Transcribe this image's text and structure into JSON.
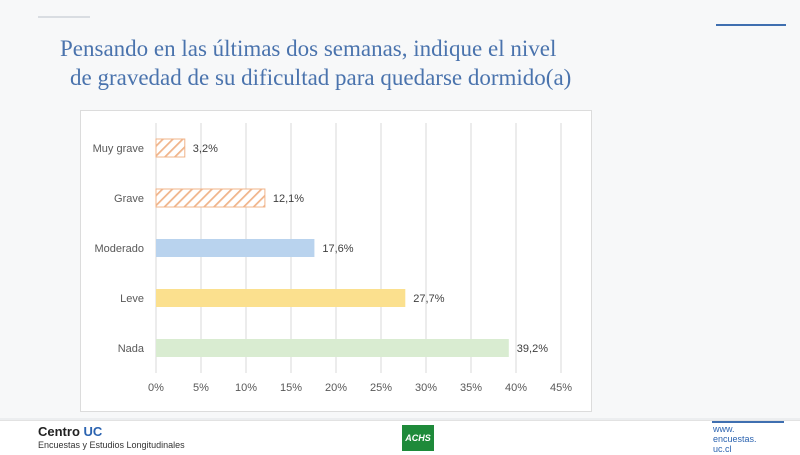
{
  "title": {
    "line1": "Pensando en las últimas dos semanas, indique el nivel",
    "line2": "de gravedad de su dificultad para quedarse dormido(a)"
  },
  "chart_data": {
    "type": "bar",
    "orientation": "horizontal",
    "categories": [
      "Muy grave",
      "Grave",
      "Moderado",
      "Leve",
      "Nada"
    ],
    "values": [
      3.2,
      12.1,
      17.6,
      27.7,
      39.2
    ],
    "data_labels": [
      "3,2%",
      "12,1%",
      "17,6%",
      "27,7%",
      "39,2%"
    ],
    "bar_colors": [
      "#f0b48a",
      "#f0b48a",
      "#b9d3ee",
      "#fbe08e",
      "#d9ecd1"
    ],
    "bar_patterns": [
      "hatched",
      "hatched",
      "solid",
      "solid",
      "solid"
    ],
    "xlim": [
      0,
      45
    ],
    "xticks": [
      "0%",
      "5%",
      "10%",
      "15%",
      "20%",
      "25%",
      "30%",
      "35%",
      "40%",
      "45%"
    ],
    "grid": true,
    "legend": "none"
  },
  "footer": {
    "brand_name": "Centro",
    "brand_accent": "UC",
    "brand_subtitle": "Encuestas y Estudios Longitudinales",
    "partner_logo": "ACHS",
    "website_line1": "www.",
    "website_line2": "encuestas.",
    "website_line3": "uc.cl"
  }
}
